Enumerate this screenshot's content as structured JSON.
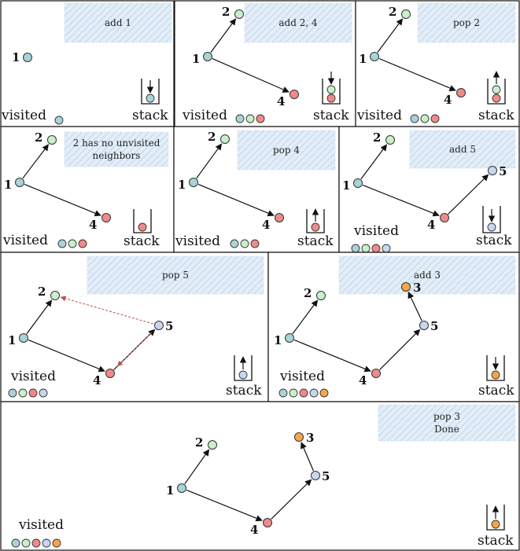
{
  "colors": {
    "node1": "#a9d3d6",
    "node2": "#c9f0c9",
    "node4": "#f08a8a",
    "node5": "#c8d6ef",
    "node3": "#f4a64a",
    "edge": "#111111",
    "backtrack": "#c0504d",
    "caption_fill": "#dbe8f5"
  },
  "node_labels": {
    "n1": "1",
    "n2": "2",
    "n3": "3",
    "n4": "4",
    "n5": "5"
  },
  "words": {
    "visited": "visited",
    "stack": "stack"
  },
  "panels": [
    {
      "id": "p1",
      "caption": [
        "add 1"
      ],
      "visited": [
        "node1"
      ],
      "stack": [
        "node1"
      ],
      "stack_arrow": "down",
      "nodes": [
        "n1"
      ],
      "edges": []
    },
    {
      "id": "p2",
      "caption": [
        "add 2, 4"
      ],
      "visited": [
        "node1",
        "node2",
        "node4"
      ],
      "stack": [
        "node4",
        "node2"
      ],
      "stack_arrow": "down",
      "nodes": [
        "n1",
        "n2",
        "n4"
      ],
      "edges": [
        [
          "n1",
          "n2"
        ],
        [
          "n1",
          "n4"
        ]
      ]
    },
    {
      "id": "p3",
      "caption": [
        "pop 2"
      ],
      "visited": [
        "node1",
        "node2",
        "node4"
      ],
      "stack": [
        "node4",
        "node2"
      ],
      "stack_arrow": "up",
      "nodes": [
        "n1",
        "n2",
        "n4"
      ],
      "edges": [
        [
          "n1",
          "n2"
        ],
        [
          "n1",
          "n4"
        ]
      ]
    },
    {
      "id": "p4",
      "caption": [
        "2 has no unvisited",
        "neighbors"
      ],
      "visited": [
        "node1",
        "node2",
        "node4"
      ],
      "stack": [
        "node4"
      ],
      "stack_arrow": "none",
      "nodes": [
        "n1",
        "n2",
        "n4"
      ],
      "edges": [
        [
          "n1",
          "n2"
        ],
        [
          "n1",
          "n4"
        ]
      ]
    },
    {
      "id": "p5",
      "caption": [
        "pop 4"
      ],
      "visited": [
        "node1",
        "node2",
        "node4"
      ],
      "stack": [
        "node4"
      ],
      "stack_arrow": "up",
      "nodes": [
        "n1",
        "n2",
        "n4"
      ],
      "edges": [
        [
          "n1",
          "n2"
        ],
        [
          "n1",
          "n4"
        ]
      ]
    },
    {
      "id": "p6",
      "caption": [
        "add 5"
      ],
      "visited": [
        "node1",
        "node2",
        "node4",
        "node5"
      ],
      "stack": [
        "node5"
      ],
      "stack_arrow": "down",
      "nodes": [
        "n1",
        "n2",
        "n4",
        "n5"
      ],
      "edges": [
        [
          "n1",
          "n2"
        ],
        [
          "n1",
          "n4"
        ],
        [
          "n4",
          "n5"
        ]
      ]
    },
    {
      "id": "p7",
      "caption": [
        "pop 5"
      ],
      "visited": [
        "node1",
        "node2",
        "node4",
        "node5"
      ],
      "stack": [
        "node5"
      ],
      "stack_arrow": "up",
      "nodes": [
        "n1",
        "n2",
        "n4",
        "n5"
      ],
      "edges": [
        [
          "n1",
          "n2"
        ],
        [
          "n1",
          "n4"
        ],
        [
          "n4",
          "n5"
        ]
      ],
      "backtrack": [
        [
          "n5",
          "n2"
        ],
        [
          "n5",
          "n4"
        ]
      ]
    },
    {
      "id": "p8",
      "caption": [
        "add 3"
      ],
      "visited": [
        "node1",
        "node2",
        "node4",
        "node5",
        "node3"
      ],
      "stack": [
        "node3"
      ],
      "stack_arrow": "down",
      "nodes": [
        "n1",
        "n2",
        "n4",
        "n5",
        "n3"
      ],
      "edges": [
        [
          "n1",
          "n2"
        ],
        [
          "n1",
          "n4"
        ],
        [
          "n4",
          "n5"
        ],
        [
          "n5",
          "n3"
        ]
      ]
    },
    {
      "id": "p9",
      "caption": [
        "pop 3",
        "Done"
      ],
      "visited": [
        "node1",
        "node2",
        "node4",
        "node5",
        "node3"
      ],
      "stack": [
        "node3"
      ],
      "stack_arrow": "up",
      "nodes": [
        "n1",
        "n2",
        "n4",
        "n5",
        "n3"
      ],
      "edges": [
        [
          "n1",
          "n2"
        ],
        [
          "n1",
          "n4"
        ],
        [
          "n4",
          "n5"
        ],
        [
          "n5",
          "n3"
        ]
      ]
    }
  ]
}
